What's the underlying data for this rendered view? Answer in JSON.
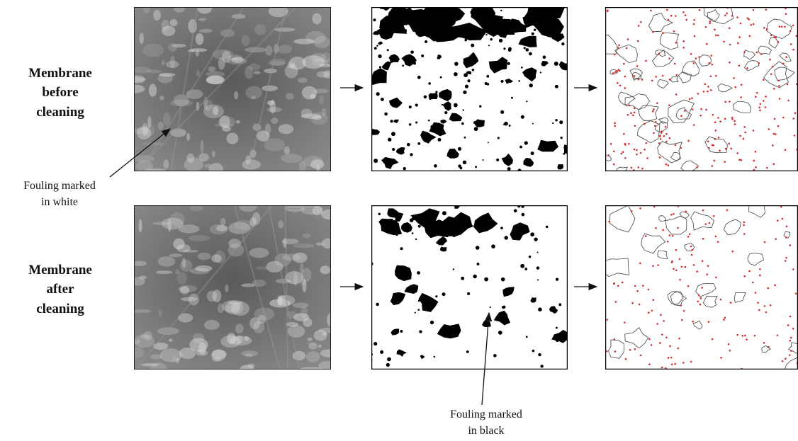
{
  "rows": [
    {
      "label_lines": [
        "Membrane",
        "before",
        "cleaning"
      ]
    },
    {
      "label_lines": [
        "Membrane",
        "after",
        "cleaning"
      ]
    }
  ],
  "annotations": [
    {
      "lines": [
        "Fouling marked",
        "in white"
      ]
    },
    {
      "lines": [
        "Fouling marked",
        "in black"
      ]
    }
  ]
}
